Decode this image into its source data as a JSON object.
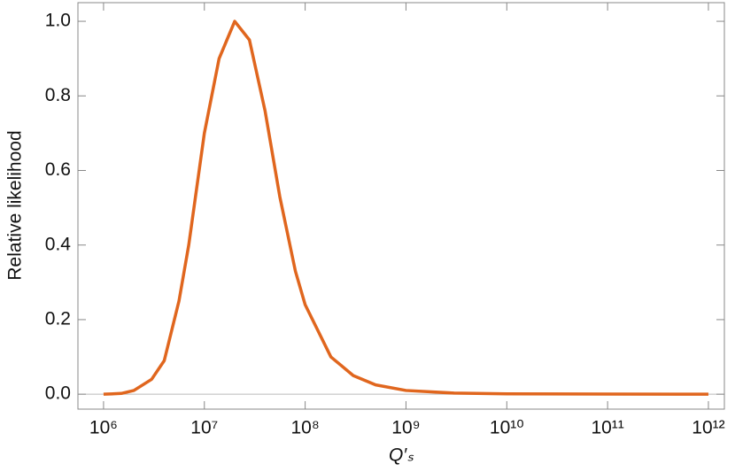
{
  "chart_data": {
    "type": "line",
    "x_label": "Q′ₛ",
    "y_label": "Relative likelihood",
    "x_scale": "log",
    "xlim": [
      557000,
      1440000000000
    ],
    "ylim": [
      -0.04,
      1.05
    ],
    "xticks": [
      {
        "value": 1000000,
        "label": "10⁶"
      },
      {
        "value": 10000000,
        "label": "10⁷"
      },
      {
        "value": 100000000,
        "label": "10⁸"
      },
      {
        "value": 1000000000,
        "label": "10⁹"
      },
      {
        "value": 10000000000,
        "label": "10¹⁰"
      },
      {
        "value": 100000000000,
        "label": "10¹¹"
      },
      {
        "value": 1000000000000,
        "label": "10¹²"
      }
    ],
    "yticks": [
      {
        "value": 0,
        "label": "0.0"
      },
      {
        "value": 0.2,
        "label": "0.2"
      },
      {
        "value": 0.4,
        "label": "0.4"
      },
      {
        "value": 0.6,
        "label": "0.6"
      },
      {
        "value": 0.8,
        "label": "0.8"
      },
      {
        "value": 1,
        "label": "1.0"
      }
    ],
    "x": [
      1000000,
      1500000,
      2000000,
      3000000,
      4000000,
      5600000,
      7000000,
      10000000,
      14000000,
      20000000,
      28000000,
      40000000,
      56000000,
      80000000,
      100000000,
      180000000,
      300000000,
      500000000,
      1000000000,
      3000000000,
      10000000000,
      100000000000,
      1000000000000
    ],
    "series": [
      {
        "color": "#e0661e",
        "values": [
          0,
          0.002,
          0.01,
          0.04,
          0.09,
          0.25,
          0.4,
          0.7,
          0.9,
          1.0,
          0.95,
          0.76,
          0.53,
          0.33,
          0.24,
          0.1,
          0.05,
          0.025,
          0.01,
          0.003,
          0.001,
          0.0003,
          0.0001
        ]
      }
    ]
  }
}
